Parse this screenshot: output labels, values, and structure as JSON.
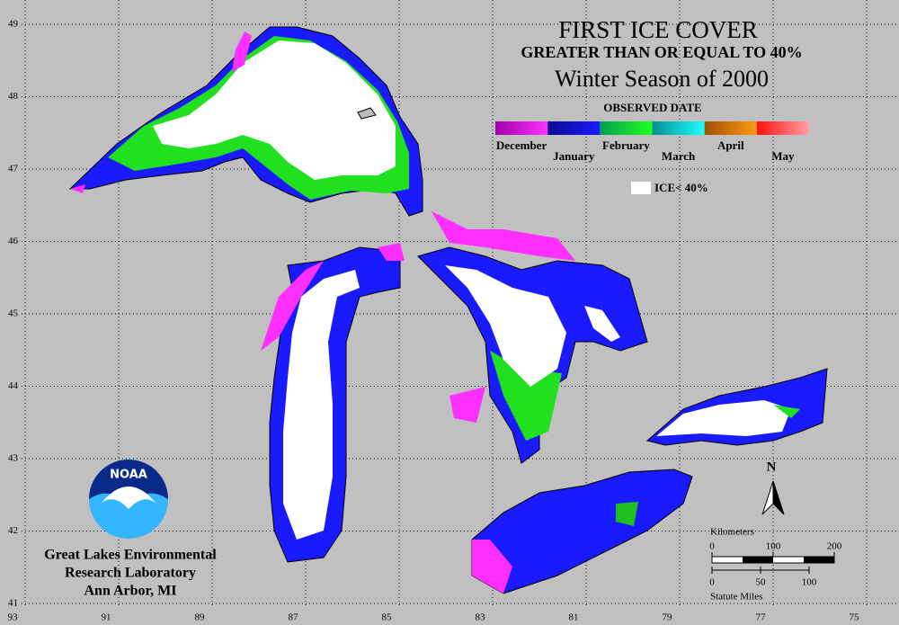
{
  "header": {
    "title": "FIRST ICE COVER",
    "subtitle": "GREATER THAN OR EQUAL TO 40%",
    "season": "Winter Season of 2000"
  },
  "legend": {
    "title": "OBSERVED DATE",
    "months": [
      {
        "label": "December",
        "colors": [
          "#a000a8",
          "#ff30ff"
        ]
      },
      {
        "label": "January",
        "colors": [
          "#0a0a90",
          "#1a1aff"
        ]
      },
      {
        "label": "February",
        "colors": [
          "#00a050",
          "#20ff20"
        ]
      },
      {
        "label": "March",
        "colors": [
          "#009090",
          "#20ffff"
        ]
      },
      {
        "label": "April",
        "colors": [
          "#a05000",
          "#ff9a10"
        ]
      },
      {
        "label": "May",
        "colors": [
          "#ff1010",
          "#ffa0a0"
        ]
      }
    ],
    "white_label": "ICE< 40%"
  },
  "latitude_labels": [
    "49",
    "48",
    "47",
    "46",
    "45",
    "44",
    "43",
    "42",
    "41"
  ],
  "longitude_labels": [
    "93",
    "91",
    "89",
    "87",
    "85",
    "83",
    "81",
    "79",
    "77",
    "75"
  ],
  "north": "N",
  "scale": {
    "km_title": "Kilometers",
    "km_ticks": [
      "0",
      "100",
      "200"
    ],
    "mi_title": "Statute Miles",
    "mi_ticks": [
      "0",
      "50",
      "100"
    ]
  },
  "logo": "NOAA",
  "organization": [
    "Great Lakes Environmental",
    "Research Laboratory",
    "Ann Arbor, MI"
  ]
}
